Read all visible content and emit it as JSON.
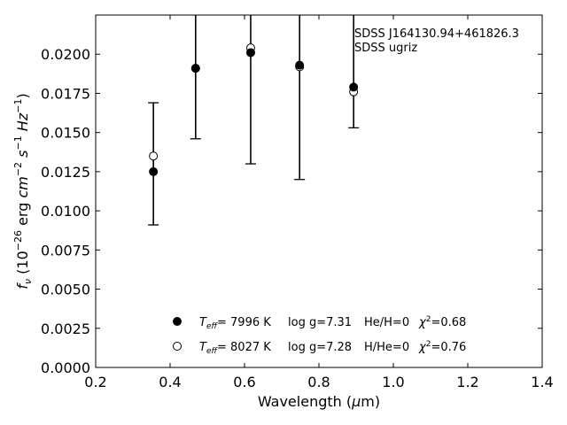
{
  "chart_data": {
    "type": "scatter",
    "xlabel_parts": {
      "pre": "Wavelength (",
      "mu": "μ",
      "post": "m)"
    },
    "ylabel_parts": {
      "f": "f",
      "nu": "ν",
      "lp": " (10",
      "e1": "−26",
      "erg": " erg ",
      "cm": "cm",
      "e2": "−2",
      "s": "s",
      "e3": "−1",
      "hz": "Hz",
      "e4": "−1",
      "rp": ")"
    },
    "xlim": [
      0.2,
      1.4
    ],
    "ylim": [
      0.0,
      0.0225
    ],
    "xticks": [
      0.2,
      0.4,
      0.6,
      0.8,
      1.0,
      1.2,
      1.4
    ],
    "xtick_labels": [
      "0.2",
      "0.4",
      "0.6",
      "0.8",
      "1.0",
      "1.2",
      "1.4"
    ],
    "yticks": [
      0.0,
      0.0025,
      0.005,
      0.0075,
      0.01,
      0.0125,
      0.015,
      0.0175,
      0.02
    ],
    "ytick_labels": [
      "0.0000",
      "0.0025",
      "0.0050",
      "0.0075",
      "0.0100",
      "0.0125",
      "0.0150",
      "0.0175",
      "0.0200"
    ],
    "annotation": [
      "SDSS J164130.94+461826.3",
      "SDSS ugriz"
    ],
    "observed": {
      "x": [
        0.3551,
        0.4686,
        0.6166,
        0.748,
        0.8932
      ],
      "y": [
        0.0125,
        0.0191,
        0.0201,
        0.0193,
        0.0179
      ],
      "err_low": [
        0.0091,
        0.0146,
        0.013,
        0.012,
        0.0153
      ],
      "err_high": [
        0.0169,
        0.0225,
        0.0225,
        0.0225,
        0.0225
      ]
    },
    "series": [
      {
        "marker": "filled",
        "x": [
          0.3551,
          0.4686,
          0.6166,
          0.748,
          0.8932
        ],
        "y": [
          0.0125,
          0.0191,
          0.0201,
          0.0193,
          0.0179
        ],
        "legend": {
          "T": "T",
          "sub": "eff",
          "teff": "=  7996 K",
          "logg": "log g=7.31",
          "comp": "He/H=0",
          "chi": "χ",
          "chi_sup": "2",
          "chi_val": "=0.68"
        }
      },
      {
        "marker": "open",
        "x": [
          0.3551,
          0.4686,
          0.6166,
          0.748,
          0.8932
        ],
        "y": [
          0.0135,
          0.0191,
          0.0204,
          0.0192,
          0.0176
        ],
        "legend": {
          "T": "T",
          "sub": "eff",
          "teff": "=  8027 K",
          "logg": "log g=7.28",
          "comp": "H/He=0",
          "chi": "χ",
          "chi_sup": "2",
          "chi_val": "=0.76"
        }
      }
    ]
  }
}
